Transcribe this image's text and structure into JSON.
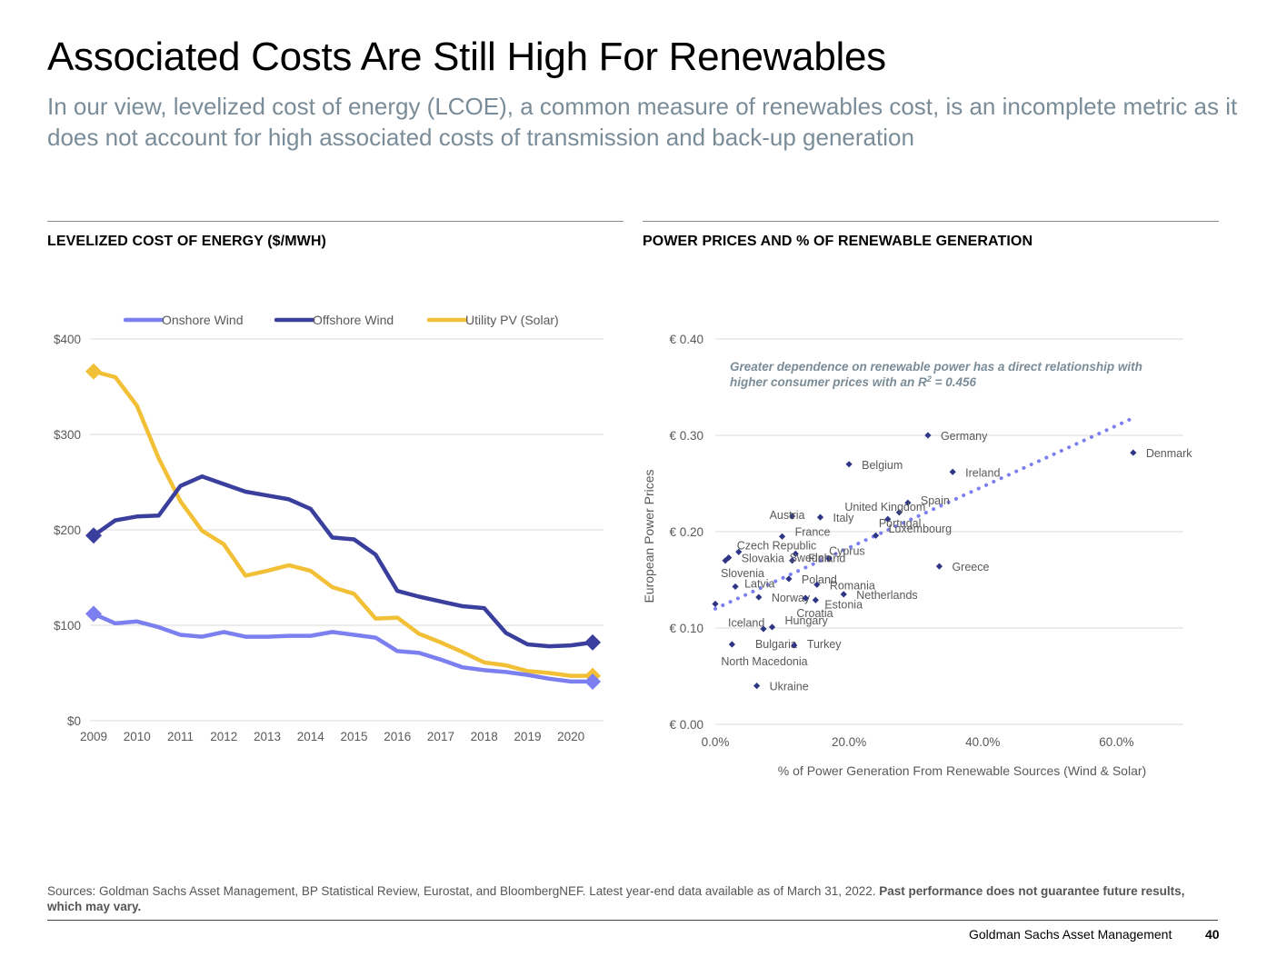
{
  "page": {
    "title": "Associated Costs Are Still High For Renewables",
    "subtitle": "In our view, levelized cost of energy (LCOE), a common measure of renewables cost, is an incomplete metric as it does not account for high associated costs of transmission and back-up generation",
    "left_chart_title": "LEVELIZED COST OF ENERGY ($/MWH)",
    "right_chart_title": "POWER PRICES AND % OF RENEWABLE GENERATION",
    "footer_sources": "Sources: Goldman Sachs Asset Management, BP Statistical Review, Eurostat, and BloombergNEF. Latest year-end data available as of March 31, 2022.",
    "footer_disclaimer": "Past performance does not guarantee future results, which may vary.",
    "brand": "Goldman Sachs Asset Management",
    "page_number": "40"
  },
  "colors": {
    "onshore": "#7b7ff0",
    "offshore": "#3a3f9e",
    "solar": "#f2c037",
    "scatter_point": "#2f3585",
    "trend": "#7b7ff0",
    "grid": "#d9d9d9",
    "axis_text": "#595959",
    "annotation": "#7a8c98"
  },
  "chart_data": [
    {
      "type": "line",
      "title": "LEVELIZED COST OF ENERGY ($/MWH)",
      "xlabel": "",
      "ylabel": "",
      "ylim": [
        0,
        400
      ],
      "y_ticks": [
        0,
        100,
        200,
        300,
        400
      ],
      "y_tick_labels": [
        "$0",
        "$100",
        "$200",
        "$300",
        "$400"
      ],
      "x_range": [
        2009,
        2020.75
      ],
      "x_ticks": [
        "2009",
        "2010",
        "2011",
        "2012",
        "2013",
        "2014",
        "2015",
        "2016",
        "2017",
        "2018",
        "2019",
        "2020"
      ],
      "legend_position": "top",
      "series": [
        {
          "name": "Onshore Wind",
          "color_key": "onshore",
          "x": [
            2009,
            2009.5,
            2010,
            2010.5,
            2011,
            2011.5,
            2012,
            2012.5,
            2013,
            2013.5,
            2014,
            2014.5,
            2015,
            2015.5,
            2016,
            2016.5,
            2017,
            2017.5,
            2018,
            2018.5,
            2019,
            2019.5,
            2020,
            2020.5
          ],
          "values": [
            112,
            102,
            104,
            98,
            90,
            88,
            93,
            88,
            88,
            89,
            89,
            93,
            90,
            87,
            73,
            71,
            64,
            56,
            53,
            51,
            48,
            44,
            41,
            41
          ]
        },
        {
          "name": "Offshore Wind",
          "color_key": "offshore",
          "x": [
            2009,
            2009.5,
            2010,
            2010.5,
            2011,
            2011.5,
            2012,
            2012.5,
            2013,
            2013.5,
            2014,
            2014.5,
            2015,
            2015.5,
            2016,
            2016.5,
            2017,
            2017.5,
            2018,
            2018.5,
            2019,
            2019.5,
            2020,
            2020.5
          ],
          "values": [
            194,
            210,
            214,
            215,
            246,
            256,
            248,
            240,
            236,
            232,
            222,
            192,
            190,
            174,
            136,
            130,
            125,
            120,
            118,
            92,
            80,
            78,
            79,
            82
          ]
        },
        {
          "name": "Utility PV (Solar)",
          "color_key": "solar",
          "x": [
            2009,
            2009.5,
            2010,
            2010.5,
            2011,
            2011.5,
            2012,
            2012.5,
            2013,
            2013.5,
            2014,
            2014.5,
            2015,
            2015.5,
            2016,
            2016.5,
            2017,
            2017.5,
            2018,
            2018.5,
            2019,
            2019.5,
            2020,
            2020.5
          ],
          "values": [
            366,
            360,
            330,
            275,
            230,
            199,
            185,
            152,
            157,
            163,
            157,
            140,
            133,
            107,
            108,
            91,
            82,
            72,
            61,
            58,
            52,
            50,
            47,
            47
          ]
        }
      ]
    },
    {
      "type": "scatter",
      "title": "POWER PRICES AND % OF RENEWABLE GENERATION",
      "xlabel": "% of Power Generation From Renewable Sources (Wind & Solar)",
      "ylabel": "European Power Prices",
      "xlim": [
        0,
        70
      ],
      "ylim": [
        0,
        0.4
      ],
      "x_ticks": [
        0,
        20,
        40,
        60
      ],
      "x_tick_labels": [
        "0.0%",
        "20.0%",
        "40.0%",
        "60.0%"
      ],
      "y_ticks": [
        0,
        0.1,
        0.2,
        0.3,
        0.4
      ],
      "y_tick_labels": [
        "€ 0.00",
        "€ 0.10",
        "€ 0.20",
        "€ 0.30",
        "€ 0.40"
      ],
      "annotation": {
        "line1": "Greater dependence on renewable power has a direct relationship with",
        "line2_prefix": "higher consumer prices with an R",
        "line2_sup": "2",
        "line2_suffix": " = 0.456"
      },
      "trendline": {
        "x": [
          0,
          62.5
        ],
        "y": [
          0.12,
          0.318
        ],
        "style": "dotted"
      },
      "points": [
        {
          "label": "Germany",
          "x": 31.8,
          "y": 0.3
        },
        {
          "label": "Denmark",
          "x": 62.5,
          "y": 0.282
        },
        {
          "label": "Belgium",
          "x": 20.0,
          "y": 0.27
        },
        {
          "label": "Ireland",
          "x": 35.5,
          "y": 0.262
        },
        {
          "label": "Spain",
          "x": 28.8,
          "y": 0.23
        },
        {
          "label": "United Kingdom",
          "x": 27.5,
          "y": 0.22
        },
        {
          "label": "Austria",
          "x": 11.5,
          "y": 0.216
        },
        {
          "label": "Italy",
          "x": 15.7,
          "y": 0.215
        },
        {
          "label": "Portugal",
          "x": 25.8,
          "y": 0.213
        },
        {
          "label": "Luxembourg",
          "x": 24.0,
          "y": 0.196
        },
        {
          "label": "France",
          "x": 10.0,
          "y": 0.195
        },
        {
          "label": "Czech Republic",
          "x": 3.5,
          "y": 0.179
        },
        {
          "label": "Finland",
          "x": 12.0,
          "y": 0.177
        },
        {
          "label": "Cyprus",
          "x": 17.0,
          "y": 0.172
        },
        {
          "label": "Slovakia",
          "x": 2.0,
          "y": 0.173
        },
        {
          "label": "Sweden",
          "x": 11.5,
          "y": 0.17
        },
        {
          "label": "Greece",
          "x": 33.5,
          "y": 0.164
        },
        {
          "label": "Slovenia",
          "x": 1.5,
          "y": 0.17
        },
        {
          "label": "Poland",
          "x": 11.0,
          "y": 0.151
        },
        {
          "label": "Latvia",
          "x": 3.0,
          "y": 0.143
        },
        {
          "label": "Romania",
          "x": 15.2,
          "y": 0.145
        },
        {
          "label": "Netherlands",
          "x": 19.2,
          "y": 0.135
        },
        {
          "label": "Norway",
          "x": 6.5,
          "y": 0.132
        },
        {
          "label": "Estonia",
          "x": 15.0,
          "y": 0.129
        },
        {
          "label": "Croatia",
          "x": 13.5,
          "y": 0.131
        },
        {
          "label": "Iceland",
          "x": 0.0,
          "y": 0.125
        },
        {
          "label": "Hungary",
          "x": 8.5,
          "y": 0.101
        },
        {
          "label": "Bulgaria",
          "x": 7.2,
          "y": 0.099
        },
        {
          "label": "Turkey",
          "x": 11.8,
          "y": 0.082
        },
        {
          "label": "North Macedonia",
          "x": 2.5,
          "y": 0.083
        },
        {
          "label": "Ukraine",
          "x": 6.2,
          "y": 0.04
        }
      ]
    }
  ]
}
